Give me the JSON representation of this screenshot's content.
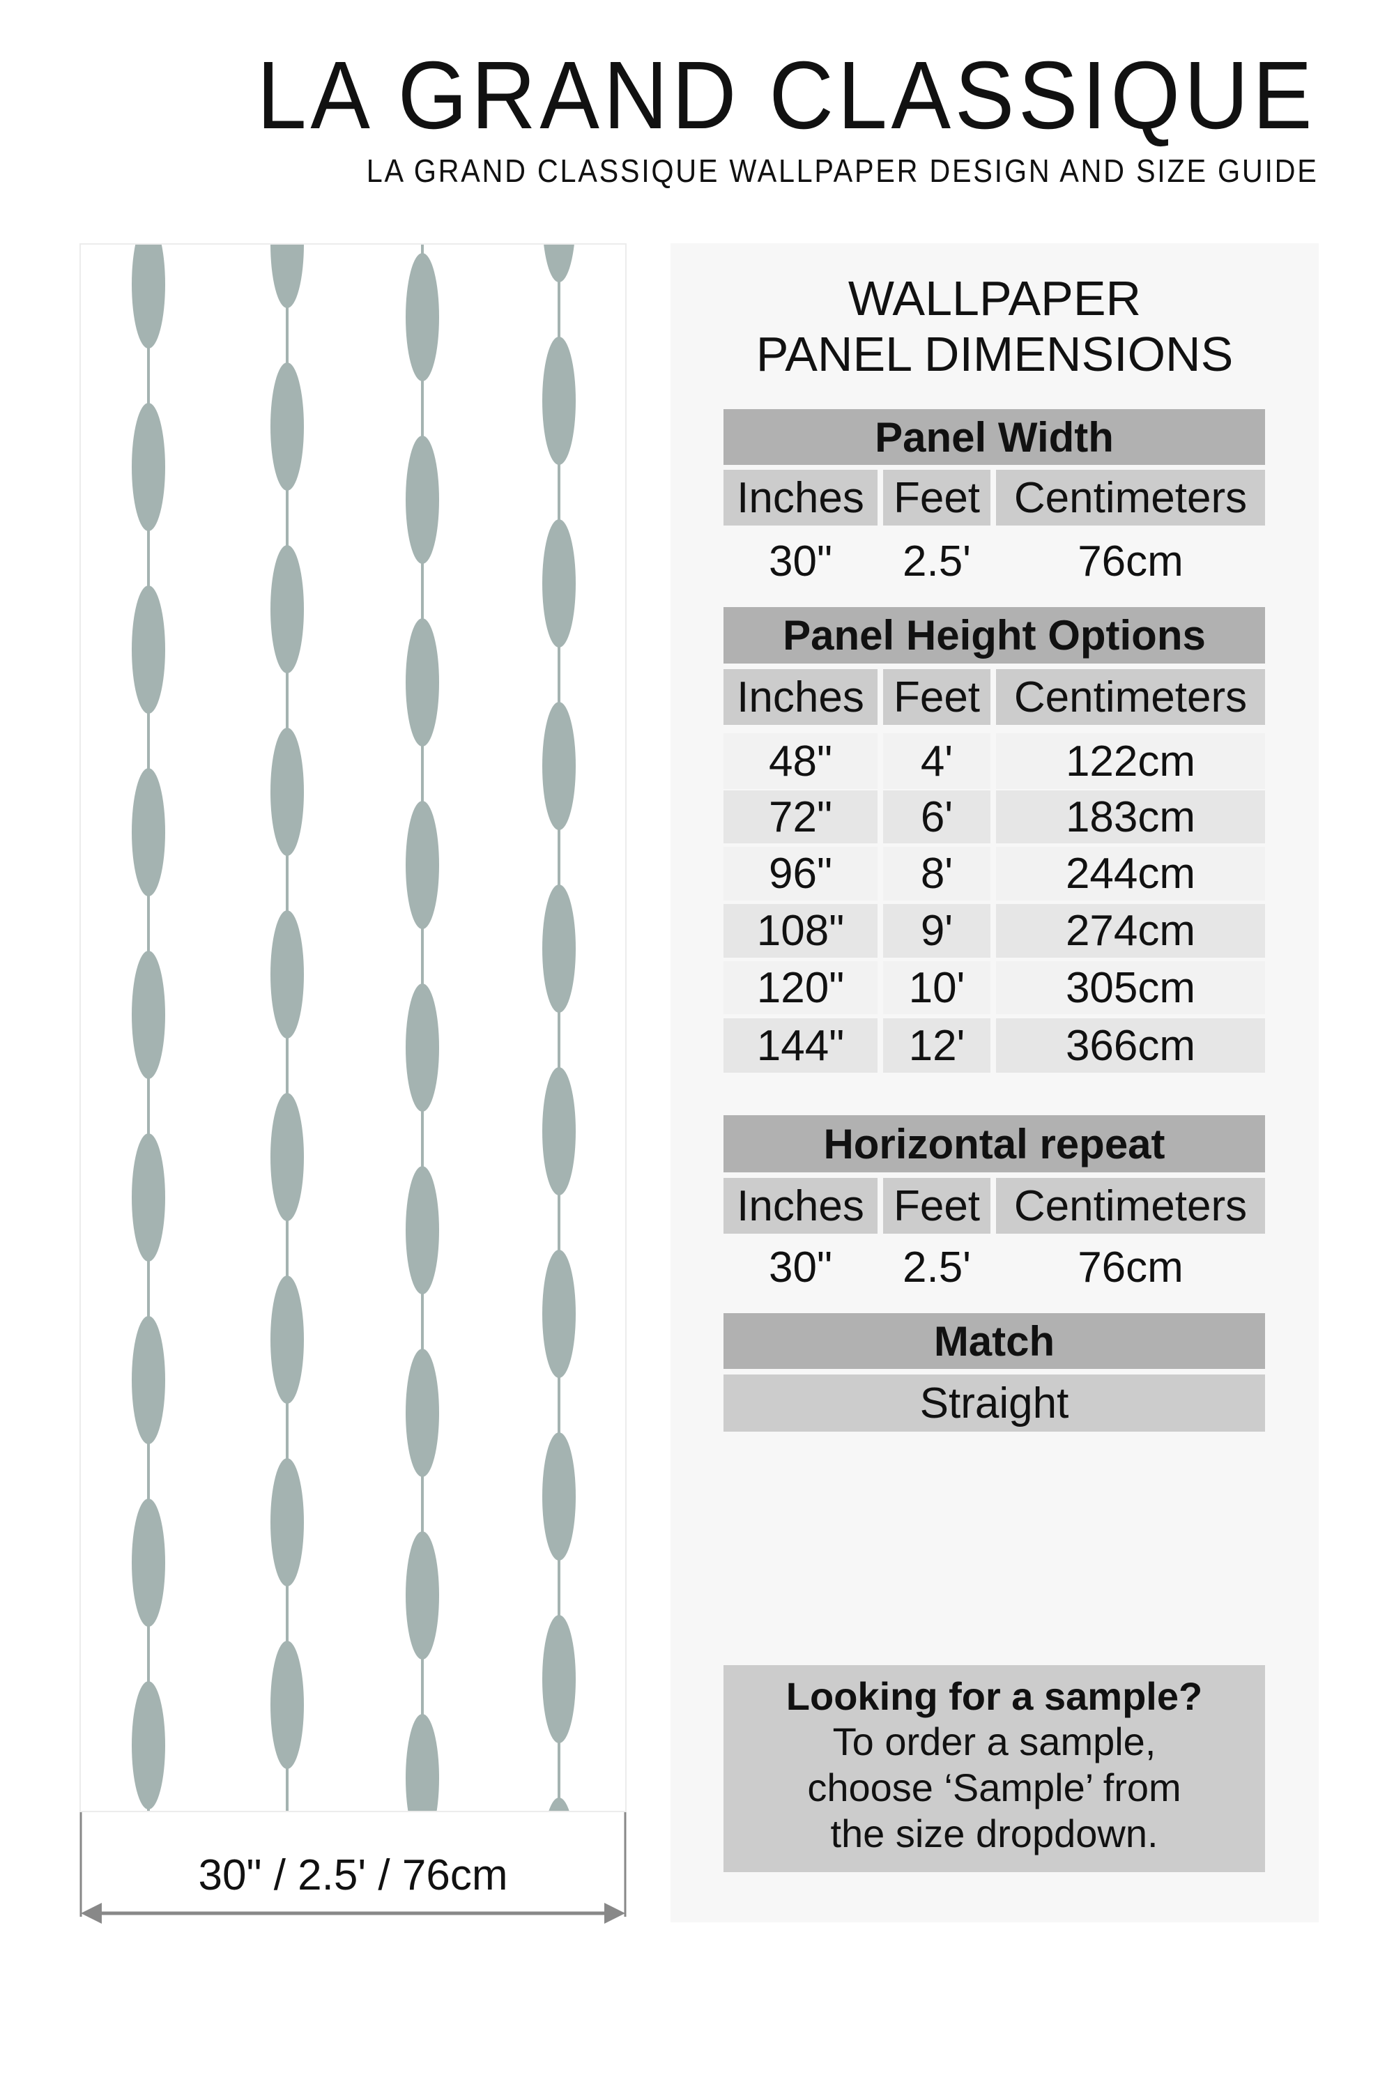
{
  "header": {
    "title": "LA GRAND CLASSIQUE",
    "subtitle": "LA GRAND CLASSIQUE WALLPAPER DESIGN AND SIZE GUIDE"
  },
  "preview": {
    "pattern_color": "#a4b3b1",
    "dimension_label": "30\" / 2.5' / 76cm"
  },
  "panel": {
    "heading_line1": "WALLPAPER",
    "heading_line2": "PANEL DIMENSIONS",
    "columns": [
      "Inches",
      "Feet",
      "Centimeters"
    ],
    "width": {
      "title": "Panel Width",
      "values": [
        "30\"",
        "2.5'",
        "76cm"
      ]
    },
    "height": {
      "title": "Panel Height Options",
      "rows": [
        [
          "48\"",
          "4'",
          "122cm"
        ],
        [
          "72\"",
          "6'",
          "183cm"
        ],
        [
          "96\"",
          "8'",
          "244cm"
        ],
        [
          "108\"",
          "9'",
          "274cm"
        ],
        [
          "120\"",
          "10'",
          "305cm"
        ],
        [
          "144\"",
          "12'",
          "366cm"
        ]
      ]
    },
    "repeat": {
      "title": "Horizontal repeat",
      "values": [
        "30\"",
        "2.5'",
        "76cm"
      ]
    },
    "match": {
      "title": "Match",
      "value": "Straight"
    },
    "sample": {
      "title": "Looking for a sample?",
      "body": "To order a sample, choose ‘Sample’ from the size dropdown."
    }
  },
  "colors": {
    "header_bg": "#b1b1b1",
    "subheader_bg": "#cccccc",
    "panel_bg": "#f7f7f7"
  }
}
